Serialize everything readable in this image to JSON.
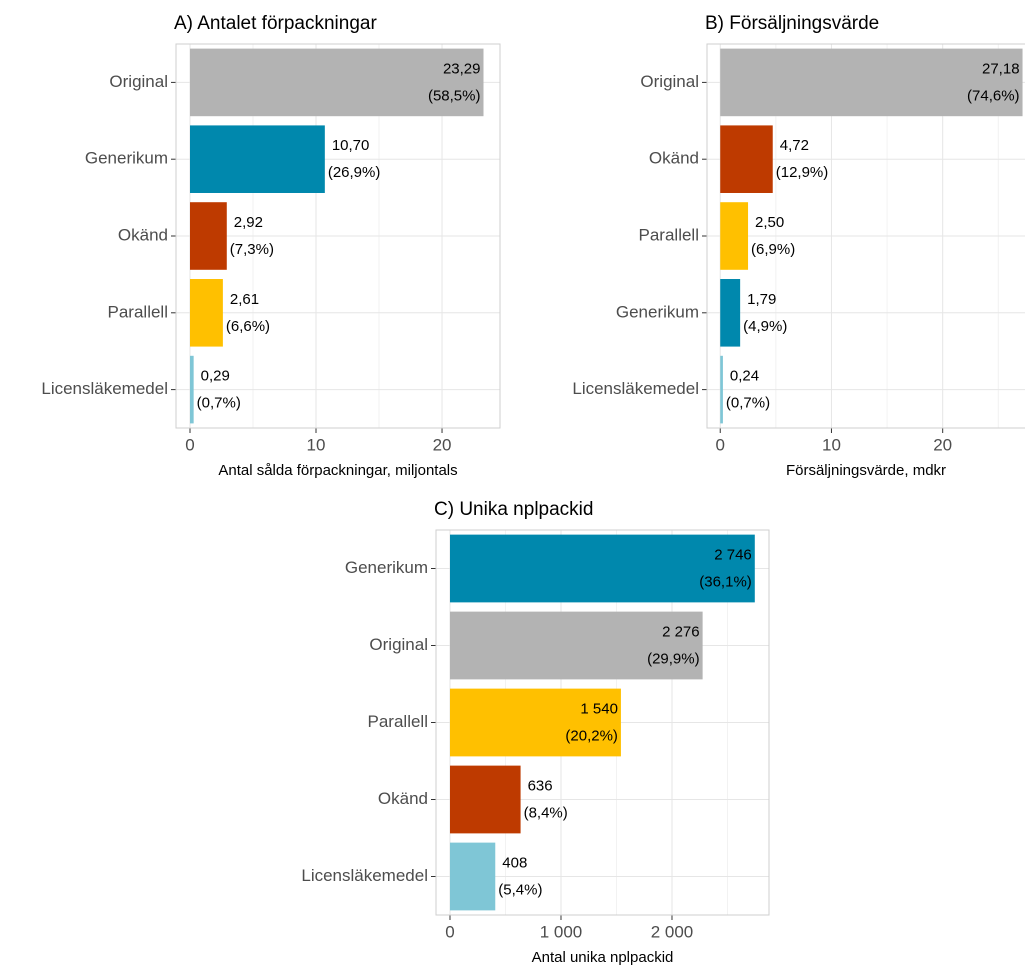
{
  "chart_data": [
    {
      "type": "bar",
      "title": "A) Antalet förpackningar",
      "x_label": "Antal sålda förpackningar, miljontals",
      "categories": [
        "Original",
        "Generikum",
        "Okänd",
        "Parallell",
        "Licensläkemedel"
      ],
      "values": [
        23.29,
        10.7,
        2.92,
        2.61,
        0.29
      ],
      "value_labels": [
        "23,29",
        "10,70",
        "2,92",
        "2,61",
        "0,29"
      ],
      "share_labels": [
        "(58,5%)",
        "(26,9%)",
        "(7,3%)",
        "(6,6%)",
        "(0,7%)"
      ],
      "colors": [
        "#b3b3b3",
        "#0088ad",
        "#be3a00",
        "#ffc000",
        "#7fc6d6"
      ],
      "xlim": [
        -1.11,
        24.6
      ],
      "xticks": [
        0,
        10,
        20
      ],
      "minor_xticks": [
        5,
        15
      ],
      "grid": true
    },
    {
      "type": "bar",
      "title": "B) Försäljningsvärde",
      "x_label": "Försäljningsvärde, mdkr",
      "categories": [
        "Original",
        "Okänd",
        "Parallell",
        "Generikum",
        "Licensläkemedel"
      ],
      "values": [
        27.18,
        4.72,
        2.5,
        1.79,
        0.24
      ],
      "value_labels": [
        "27,18",
        "4,72",
        "2,50",
        "1,79",
        "0,24"
      ],
      "share_labels": [
        "(74,6%)",
        "(12,9%)",
        "(6,9%)",
        "(4,9%)",
        "(0,7%)"
      ],
      "colors": [
        "#b3b3b3",
        "#be3a00",
        "#ffc000",
        "#0088ad",
        "#7fc6d6"
      ],
      "xlim": [
        -1.19,
        27.85
      ],
      "xticks": [
        0,
        10,
        20
      ],
      "minor_xticks": [
        5,
        15,
        25
      ],
      "grid": true
    },
    {
      "type": "bar",
      "title": "C) Unika nplpackid",
      "x_label": "Antal unika nplpackid",
      "categories": [
        "Generikum",
        "Original",
        "Parallell",
        "Okänd",
        "Licensläkemedel"
      ],
      "values": [
        2746,
        2276,
        1540,
        636,
        408
      ],
      "value_labels": [
        "2 746",
        "2 276",
        "1 540",
        "636",
        "408"
      ],
      "share_labels": [
        "(36,1%)",
        "(29,9%)",
        "(20,2%)",
        "(8,4%)",
        "(5,4%)"
      ],
      "colors": [
        "#0088ad",
        "#b3b3b3",
        "#ffc000",
        "#be3a00",
        "#7fc6d6"
      ],
      "xlim": [
        -126,
        2874
      ],
      "xticks": [
        0,
        {
          "value": 1000,
          "label": "1 000"
        },
        {
          "value": 2000,
          "label": "2 000"
        }
      ],
      "minor_xticks": [
        500,
        1500,
        2500
      ],
      "grid": true
    }
  ]
}
